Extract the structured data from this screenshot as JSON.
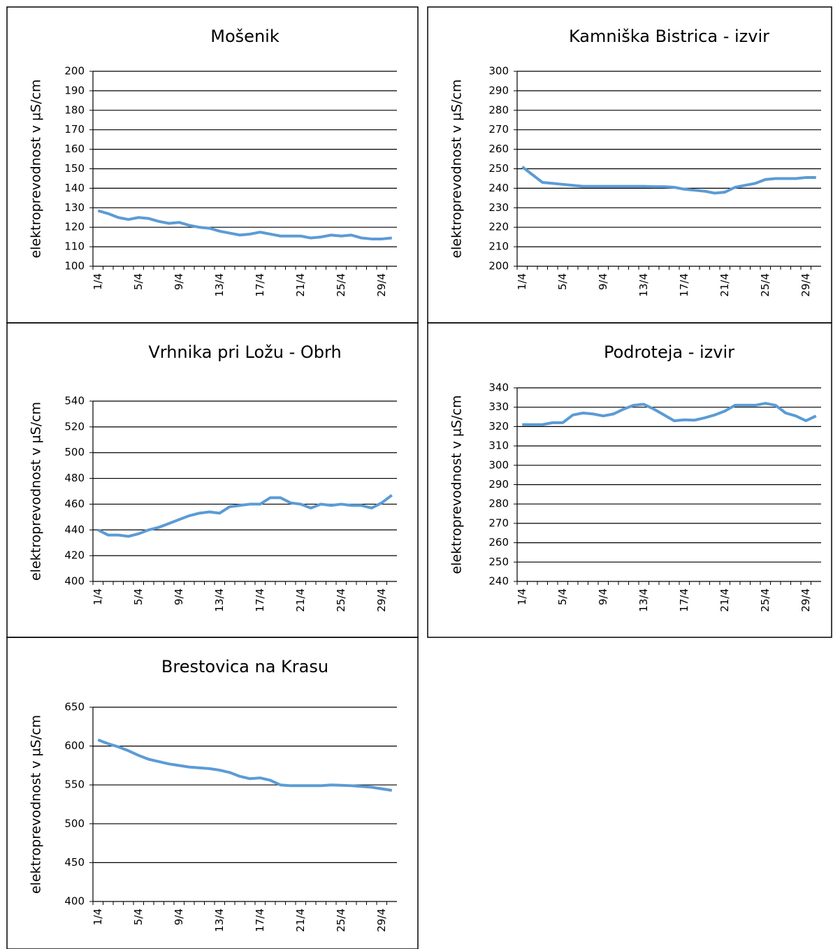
{
  "chart_data": [
    {
      "type": "line",
      "title": "Mošenik",
      "y_label": "elektroprevodnost v µS/cm",
      "categories": [
        "1/4",
        null,
        null,
        null,
        "5/4",
        null,
        null,
        null,
        "9/4",
        null,
        null,
        null,
        "13/4",
        null,
        null,
        null,
        "17/4",
        null,
        null,
        null,
        "21/4",
        null,
        null,
        null,
        "25/4",
        null,
        null,
        null,
        "29/4",
        null
      ],
      "values": [
        128.5,
        127,
        125,
        124,
        125,
        124.5,
        123,
        122,
        122.5,
        121,
        120,
        119.5,
        118,
        117,
        116,
        116.5,
        117.5,
        116.5,
        115.5,
        115.5,
        115.5,
        114.5,
        115,
        116,
        115.5,
        116,
        114.5,
        114,
        114,
        114.5
      ],
      "color": "#5b9bd5",
      "ylim": [
        100,
        200
      ],
      "yticks": [
        100,
        110,
        120,
        130,
        140,
        150,
        160,
        170,
        180,
        190,
        200
      ],
      "grid": true
    },
    {
      "type": "line",
      "title": "Kamniška Bistrica - izvir",
      "y_label": "elektroprevodnost v µS/cm",
      "categories": [
        "1/4",
        null,
        null,
        null,
        "5/4",
        null,
        null,
        null,
        "9/4",
        null,
        null,
        null,
        "13/4",
        null,
        null,
        null,
        "17/4",
        null,
        null,
        null,
        "21/4",
        null,
        null,
        null,
        "25/4",
        null,
        null,
        null,
        "29/4",
        null
      ],
      "values": [
        251,
        247,
        243,
        242.5,
        242,
        241.5,
        241,
        241,
        241,
        241,
        241,
        241,
        241,
        240.8,
        240.8,
        240.5,
        239.5,
        239,
        238.5,
        237.5,
        238,
        240.5,
        241.5,
        242.5,
        244.5,
        245,
        245,
        245,
        245.5,
        245.5
      ],
      "color": "#5b9bd5",
      "ylim": [
        200,
        300
      ],
      "yticks": [
        200,
        210,
        220,
        230,
        240,
        250,
        260,
        270,
        280,
        290,
        300
      ],
      "grid": true
    },
    {
      "type": "line",
      "title": "Vrhnika pri Ložu - Obrh",
      "y_label": "elektroprevodnost v µS/cm",
      "categories": [
        "1/4",
        null,
        null,
        null,
        "5/4",
        null,
        null,
        null,
        "9/4",
        null,
        null,
        null,
        "13/4",
        null,
        null,
        null,
        "17/4",
        null,
        null,
        null,
        "21/4",
        null,
        null,
        null,
        "25/4",
        null,
        null,
        null,
        "29/4",
        null
      ],
      "values": [
        440,
        436,
        436,
        435,
        437,
        440,
        442,
        445,
        448,
        451,
        453,
        454,
        453,
        458,
        459,
        460,
        460,
        465,
        465,
        461,
        460,
        457,
        460,
        459,
        460,
        459,
        459,
        457,
        461,
        467
      ],
      "color": "#5b9bd5",
      "ylim": [
        400,
        540
      ],
      "yticks": [
        400,
        420,
        440,
        460,
        480,
        500,
        520,
        540
      ],
      "grid": true
    },
    {
      "type": "line",
      "title": "Podroteja - izvir",
      "y_label": "elektroprevodnost v µS/cm",
      "categories": [
        "1/4",
        null,
        null,
        null,
        "5/4",
        null,
        null,
        null,
        "9/4",
        null,
        null,
        null,
        "13/4",
        null,
        null,
        null,
        "17/4",
        null,
        null,
        null,
        "21/4",
        null,
        null,
        null,
        "25/4",
        null,
        null,
        null,
        "29/4",
        null
      ],
      "values": [
        321,
        321,
        321,
        322,
        322,
        326,
        327,
        326.5,
        325.5,
        326.5,
        329,
        331,
        331.5,
        329,
        326,
        323,
        323.5,
        323.3,
        324.5,
        326,
        328,
        331,
        331,
        331,
        332,
        331,
        327,
        325.5,
        323,
        325.5
      ],
      "color": "#5b9bd5",
      "ylim": [
        240,
        340
      ],
      "yticks": [
        240,
        250,
        260,
        270,
        280,
        290,
        300,
        310,
        320,
        330,
        340
      ],
      "grid": true
    },
    {
      "type": "line",
      "title": "Brestovica na Krasu",
      "y_label": "elektroprevodnost v µS/cm",
      "categories": [
        "1/4",
        null,
        null,
        null,
        "5/4",
        null,
        null,
        null,
        "9/4",
        null,
        null,
        null,
        "13/4",
        null,
        null,
        null,
        "17/4",
        null,
        null,
        null,
        "21/4",
        null,
        null,
        null,
        "25/4",
        null,
        null,
        null,
        "29/4",
        null
      ],
      "values": [
        608,
        603,
        599,
        594,
        588,
        583,
        580,
        577,
        575,
        573,
        572,
        571,
        569,
        566,
        561,
        558,
        559,
        556,
        550,
        549,
        549,
        549,
        549,
        550,
        549.5,
        549,
        548,
        547,
        545,
        543
      ],
      "color": "#5b9bd5",
      "ylim": [
        400,
        650
      ],
      "yticks": [
        400,
        450,
        500,
        550,
        600,
        650
      ],
      "grid": true
    }
  ]
}
